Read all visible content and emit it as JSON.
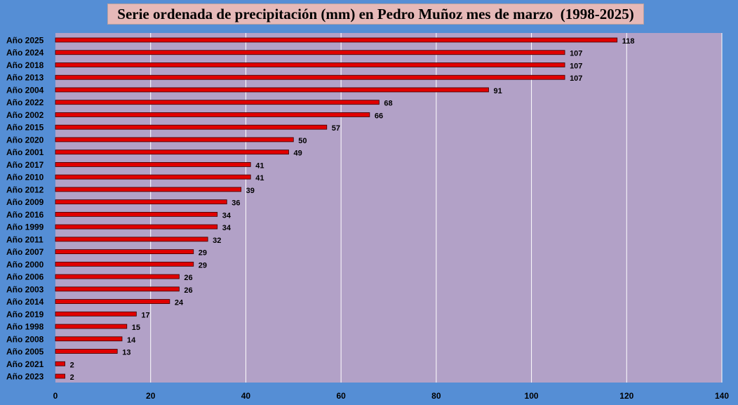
{
  "colors": {
    "background": "#558ed5",
    "plot_area": "#b2a1c7",
    "bar_fill": "#e00000",
    "bar_stroke": "#3a0000",
    "gridline": "#ffffff",
    "title_box": "#e6b9b8"
  },
  "chart_data": {
    "type": "bar",
    "orientation": "horizontal",
    "title": "Serie ordenada de precipitación (mm) en Pedro Muñoz mes de marzo  (1998-2025)",
    "xlabel": "",
    "ylabel": "",
    "xlim": [
      0,
      140
    ],
    "xticks": [
      "0",
      "20",
      "40",
      "60",
      "80",
      "100",
      "120",
      "140"
    ],
    "xtick_values": [
      0,
      20,
      40,
      60,
      80,
      100,
      120,
      140
    ],
    "grid": true,
    "legend": "none",
    "categories": [
      "Año 2025",
      "Año 2024",
      "Año 2018",
      "Año 2013",
      "Año 2004",
      "Año 2022",
      "Año 2002",
      "Año 2015",
      "Año 2020",
      "Año 2001",
      "Año 2017",
      "Año 2010",
      "Año 2012",
      "Año 2009",
      "Año 2016",
      "Año 1999",
      "Año 2011",
      "Año 2007",
      "Año 2000",
      "Año 2006",
      "Año 2003",
      "Año 2014",
      "Año 2019",
      "Año 1998",
      "Año 2008",
      "Año 2005",
      "Año 2021",
      "Año 2023"
    ],
    "values": [
      118,
      107,
      107,
      107,
      91,
      68,
      66,
      57,
      50,
      49,
      41,
      41,
      39,
      36,
      34,
      34,
      32,
      29,
      29,
      26,
      26,
      24,
      17,
      15,
      14,
      13,
      2,
      2
    ]
  }
}
